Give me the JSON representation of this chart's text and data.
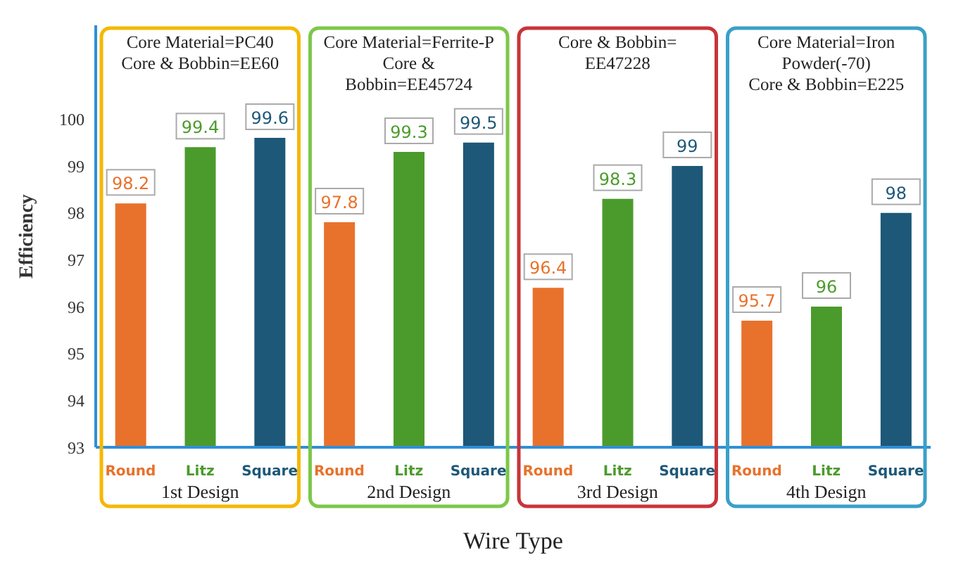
{
  "chart_data": {
    "type": "bar",
    "xlabel": "Wire Type",
    "ylabel": "Efficiency",
    "categories": [
      "Round",
      "Litz",
      "Square",
      "Round",
      "Litz",
      "Square",
      "Round",
      "Litz",
      "Square",
      "Round",
      "Litz",
      "Square"
    ],
    "values": [
      98.2,
      99.4,
      99.6,
      97.8,
      99.3,
      99.5,
      96.4,
      98.3,
      99,
      95.7,
      96,
      98
    ],
    "colors": [
      "#e8722c",
      "#4b9b2c",
      "#1d5878",
      "#e8722c",
      "#4b9b2c",
      "#1d5878",
      "#e8722c",
      "#4b9b2c",
      "#1d5878",
      "#e8722c",
      "#4b9b2c",
      "#1d5878"
    ],
    "ylim": [
      93,
      102
    ],
    "yticks": [
      93,
      94,
      95,
      96,
      97,
      98,
      99,
      100
    ],
    "data_labels": true,
    "grid": false,
    "legend": false,
    "annotations": [
      "Core Material=PC40\nCore & Bobbin=EE60",
      "1st Design",
      "Core Material=Ferrite-P\nCore &\nBobbin=EE45724",
      "2nd Design",
      "Core & Bobbin=\nEE47228",
      "3rd Design",
      "Core Material=Iron\nPowder(-70)\nCore & Bobbin=E225",
      "4th Design"
    ]
  }
}
